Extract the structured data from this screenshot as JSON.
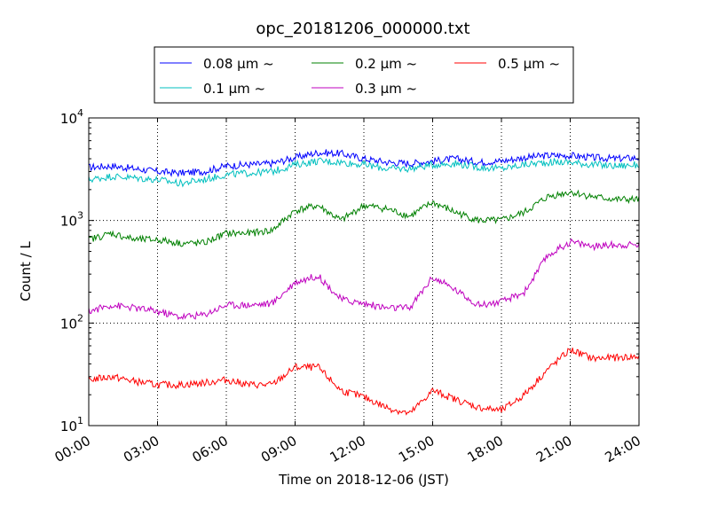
{
  "chart_data": {
    "type": "line",
    "title": "opc_20181206_000000.txt",
    "xlabel": "Time on 2018-12-06 (JST)",
    "ylabel": "Count / L",
    "xlim": [
      0,
      24
    ],
    "ylim": [
      10,
      10000
    ],
    "yscale": "log",
    "grid": true,
    "legend_position": "top-center",
    "x_ticks": [
      {
        "value": 0,
        "label": "00:00"
      },
      {
        "value": 3,
        "label": "03:00"
      },
      {
        "value": 6,
        "label": "06:00"
      },
      {
        "value": 9,
        "label": "09:00"
      },
      {
        "value": 12,
        "label": "12:00"
      },
      {
        "value": 15,
        "label": "15:00"
      },
      {
        "value": 18,
        "label": "18:00"
      },
      {
        "value": 21,
        "label": "21:00"
      },
      {
        "value": 24,
        "label": "24:00"
      }
    ],
    "y_ticks": [
      {
        "value": 10,
        "base": "10",
        "exp": "1"
      },
      {
        "value": 100,
        "base": "10",
        "exp": "2"
      },
      {
        "value": 1000,
        "base": "10",
        "exp": "3"
      },
      {
        "value": 10000,
        "base": "10",
        "exp": "4"
      }
    ],
    "x": [
      0,
      1,
      2,
      3,
      4,
      5,
      6,
      7,
      8,
      9,
      10,
      11,
      12,
      13,
      14,
      15,
      16,
      17,
      18,
      19,
      20,
      21,
      22,
      23,
      24
    ],
    "series": [
      {
        "name": "0.08 μm ~",
        "color": "#0000ff",
        "values": [
          3300,
          3400,
          3200,
          3000,
          2900,
          3000,
          3400,
          3500,
          3600,
          4100,
          4600,
          4500,
          4000,
          3700,
          3600,
          3800,
          4000,
          3700,
          3800,
          4100,
          4300,
          4300,
          4100,
          4000,
          4100
        ]
      },
      {
        "name": "0.1 μm ~",
        "color": "#00bfbf",
        "values": [
          2500,
          2700,
          2600,
          2500,
          2300,
          2500,
          2800,
          2900,
          3000,
          3500,
          3800,
          3700,
          3500,
          3200,
          3200,
          3500,
          3600,
          3300,
          3200,
          3500,
          3700,
          3700,
          3500,
          3400,
          3500
        ]
      },
      {
        "name": "0.2 μm ~",
        "color": "#008000",
        "values": [
          650,
          750,
          650,
          650,
          600,
          600,
          750,
          750,
          800,
          1250,
          1400,
          1000,
          1400,
          1300,
          1100,
          1500,
          1200,
          1000,
          1000,
          1200,
          1700,
          1900,
          1700,
          1600,
          1600
        ]
      },
      {
        "name": "0.3 μm ~",
        "color": "#bf00bf",
        "values": [
          130,
          150,
          140,
          130,
          115,
          120,
          150,
          150,
          155,
          250,
          290,
          170,
          155,
          140,
          140,
          280,
          210,
          150,
          160,
          200,
          450,
          620,
          560,
          580,
          580
        ]
      },
      {
        "name": "0.5 μm ~",
        "color": "#ff0000",
        "values": [
          28,
          30,
          27,
          25,
          25,
          26,
          28,
          25,
          25,
          37,
          37,
          22,
          19,
          15,
          13,
          22,
          18,
          15,
          14,
          20,
          35,
          55,
          45,
          46,
          47
        ]
      }
    ]
  }
}
